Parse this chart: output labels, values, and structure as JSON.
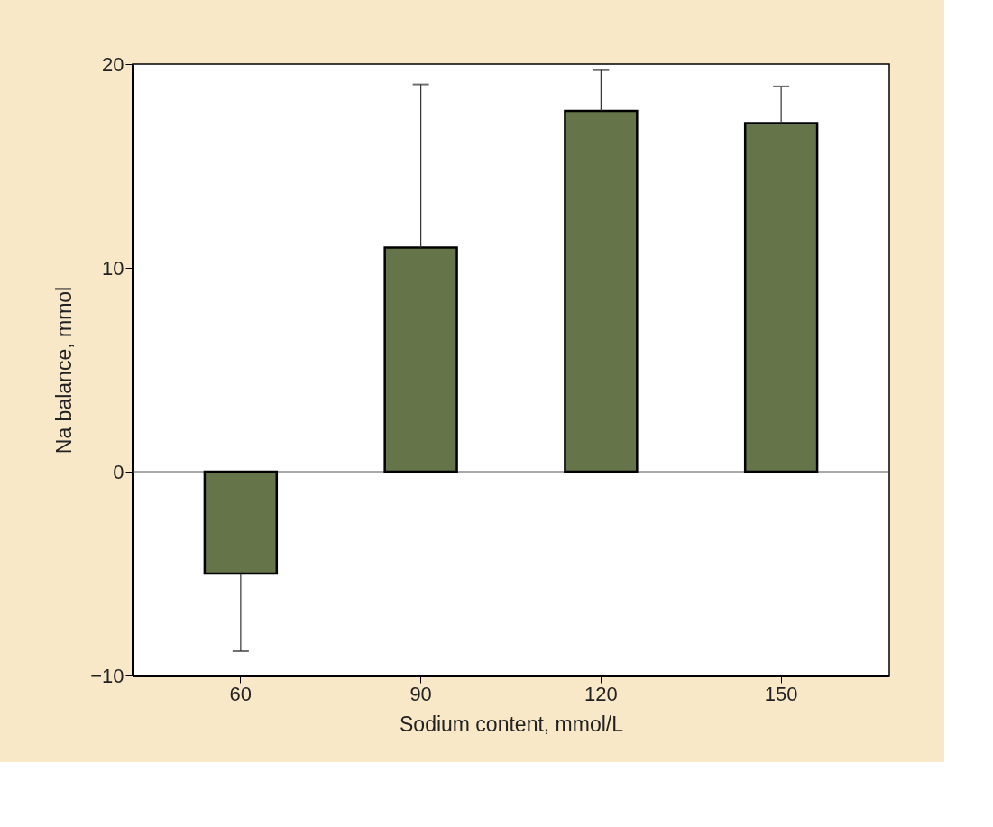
{
  "chart_data": {
    "type": "bar",
    "xlabel": "Sodium content, mmol/L",
    "ylabel": "Na balance, mmol",
    "categories": [
      "60",
      "90",
      "120",
      "150"
    ],
    "values": [
      -5,
      11,
      17.7,
      17.1
    ],
    "errors": [
      [
        -8.8,
        -5
      ],
      [
        11,
        19
      ],
      [
        17.7,
        19.7
      ],
      [
        17.1,
        18.9
      ]
    ],
    "color": "#66744a",
    "ylim": [
      -10,
      20
    ],
    "yticks": [
      -10,
      0,
      10,
      20
    ],
    "ref_lines": [
      {
        "axis": "y",
        "value": 0,
        "color": "#555555"
      }
    ],
    "grid": false
  }
}
